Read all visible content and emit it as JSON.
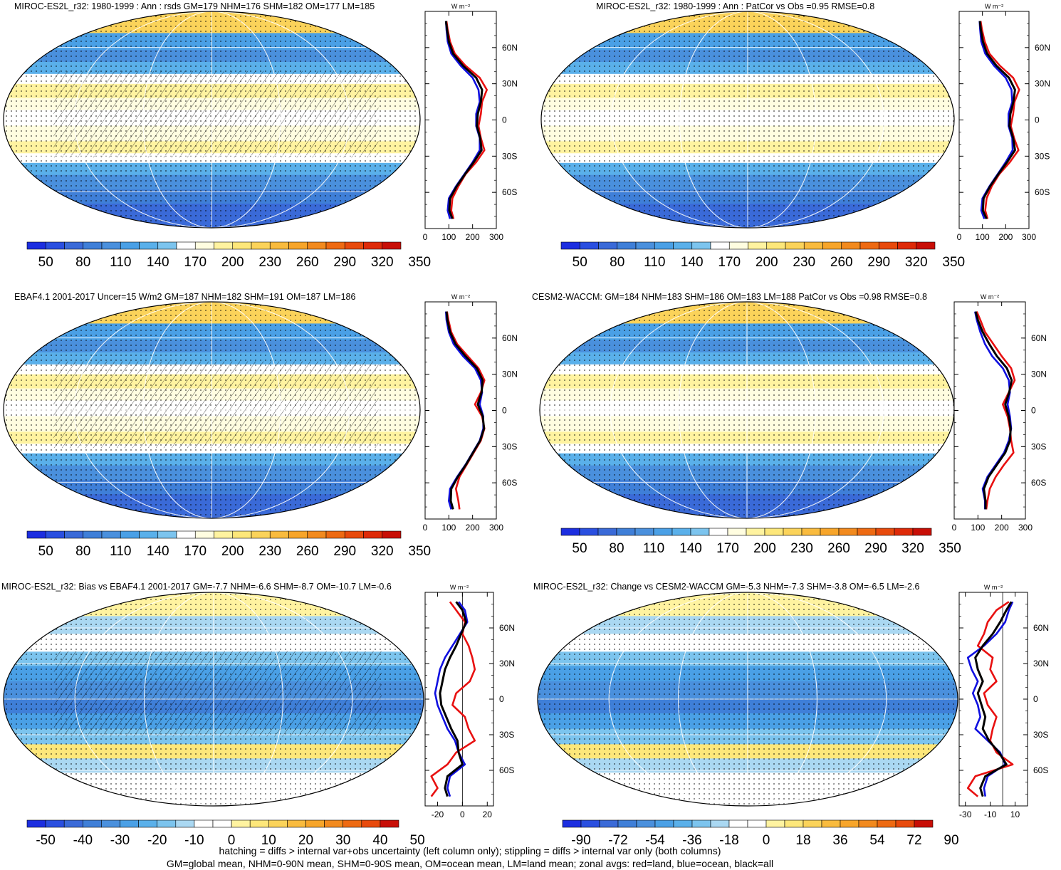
{
  "palette_abs": [
    "#1c2ee0",
    "#2a4fe0",
    "#3a6ad8",
    "#3f7fd8",
    "#4a90dd",
    "#4aa0e6",
    "#5ab0ea",
    "#7cc4ee",
    "#ffffff",
    "#fffde0",
    "#fff3a0",
    "#fde77a",
    "#fbd35a",
    "#f9bb3e",
    "#f7a52a",
    "#f28a1e",
    "#ee6a12",
    "#e84a0c",
    "#de2a08",
    "#c80e06"
  ],
  "palette_diff": [
    "#1c2ee0",
    "#2a4fe0",
    "#3a6ad8",
    "#3f7fd8",
    "#4a90dd",
    "#4aa0e6",
    "#5ab0ea",
    "#7cc4ee",
    "#aad8f2",
    "#ffffff",
    "#ffffff",
    "#fff3a0",
    "#fde77a",
    "#fbd35a",
    "#f9bb3e",
    "#f7a52a",
    "#f28a1e",
    "#ee6a12",
    "#e84a0c",
    "#c80e06"
  ],
  "line_colors": {
    "land": "#e81010",
    "ocean": "#1010e0",
    "all": "#000000"
  },
  "chart_data": [
    {
      "type": "heatmap",
      "title": "MIROC-ES2L_r32: 1980-1999 : Ann : rsds GM=179 NHM=176 SHM=182 OM=177 LM=185",
      "colorbar_labels": [
        "50",
        "80",
        "110",
        "140",
        "170",
        "200",
        "230",
        "260",
        "290",
        "320",
        "350"
      ],
      "zonal_avg": {
        "unit": "W m⁻²",
        "xlim": [
          0,
          300
        ],
        "xticks": [
          "0",
          "100",
          "200",
          "300"
        ],
        "ylim": [
          -90,
          90
        ],
        "yticks": [
          "60N",
          "30N",
          "0",
          "30S",
          "60S"
        ],
        "lat": [
          82,
          75,
          65,
          55,
          45,
          35,
          25,
          15,
          5,
          -5,
          -15,
          -25,
          -35,
          -45,
          -55,
          -65,
          -75,
          -82
        ],
        "series": [
          {
            "key": "land",
            "values": [
              90,
              95,
              105,
              125,
              170,
              230,
              260,
              240,
              235,
              225,
              235,
              250,
              215,
              170,
              140,
              115,
              110,
              120
            ]
          },
          {
            "key": "ocean",
            "values": [
              88,
              90,
              95,
              110,
              150,
              200,
              225,
              230,
              215,
              215,
              230,
              230,
              200,
              165,
              130,
              100,
              95,
              105
            ]
          },
          {
            "key": "all",
            "values": [
              88,
              92,
              100,
              118,
              160,
              215,
              240,
              235,
              222,
              218,
              232,
              238,
              205,
              168,
              133,
              105,
              102,
              115
            ]
          }
        ]
      }
    },
    {
      "type": "heatmap",
      "title": "MIROC-ES2L_r32: 1980-1999 : Ann : PatCor vs Obs =0.95 RMSE=0.8",
      "colorbar_labels": [
        "50",
        "80",
        "110",
        "140",
        "170",
        "200",
        "230",
        "260",
        "290",
        "320",
        "350"
      ],
      "zonal_avg": {
        "unit": "W m⁻²",
        "xlim": [
          0,
          300
        ],
        "xticks": [
          "0",
          "100",
          "200",
          "300"
        ],
        "ylim": [
          -90,
          90
        ],
        "yticks": [
          "60N",
          "30N",
          "0",
          "30S",
          "60S"
        ],
        "lat": [
          82,
          75,
          65,
          55,
          45,
          35,
          25,
          15,
          5,
          -5,
          -15,
          -25,
          -35,
          -45,
          -55,
          -65,
          -75,
          -82
        ],
        "series": [
          {
            "key": "land",
            "values": [
              92,
              98,
              110,
              130,
              175,
              232,
              258,
              238,
              232,
              222,
              236,
              255,
              218,
              172,
              140,
              118,
              112,
              122
            ]
          },
          {
            "key": "ocean",
            "values": [
              88,
              90,
              95,
              112,
              150,
              200,
              225,
              228,
              212,
              212,
              228,
              230,
              200,
              165,
              130,
              100,
              95,
              108
            ]
          },
          {
            "key": "all",
            "values": [
              89,
              93,
              102,
              120,
              160,
              214,
              240,
              233,
              220,
              216,
              232,
              240,
              206,
              168,
              133,
              105,
              102,
              118
            ]
          }
        ]
      }
    },
    {
      "type": "heatmap",
      "title": "EBAF4.1 2001-2017 Uncer=15 W/m2 GM=187 NHM=182 SHM=191 OM=187 LM=186",
      "colorbar_labels": [
        "50",
        "80",
        "110",
        "140",
        "170",
        "200",
        "230",
        "260",
        "290",
        "320",
        "350"
      ],
      "zonal_avg": {
        "unit": "W m⁻²",
        "xlim": [
          0,
          300
        ],
        "xticks": [
          "0",
          "100",
          "200",
          "300"
        ],
        "ylim": [
          -90,
          90
        ],
        "yticks": [
          "60N",
          "30N",
          "0",
          "30S",
          "60S"
        ],
        "lat": [
          82,
          75,
          65,
          55,
          45,
          35,
          25,
          15,
          5,
          -5,
          -15,
          -25,
          -35,
          -45,
          -55,
          -65,
          -75,
          -82
        ],
        "series": [
          {
            "key": "land",
            "values": [
              92,
              98,
              110,
              135,
              180,
              225,
              250,
              235,
              210,
              240,
              250,
              235,
              205,
              175,
              145,
              130,
              140,
              145
            ]
          },
          {
            "key": "ocean",
            "values": [
              88,
              90,
              100,
              120,
              160,
              210,
              235,
              240,
              230,
              245,
              245,
              230,
              200,
              170,
              135,
              105,
              100,
              110
            ]
          },
          {
            "key": "all",
            "values": [
              90,
              94,
              105,
              128,
              170,
              218,
              242,
              238,
              222,
              243,
              248,
              232,
              202,
              172,
              138,
              110,
              108,
              118
            ]
          }
        ]
      }
    },
    {
      "type": "heatmap",
      "title": "CESM2-WACCM: GM=184 NHM=183 SHM=186 OM=183 LM=188 PatCor vs Obs =0.98 RMSE=0.8",
      "colorbar_labels": [
        "50",
        "80",
        "110",
        "140",
        "170",
        "200",
        "230",
        "260",
        "290",
        "320",
        "350"
      ],
      "zonal_avg": {
        "unit": "W m⁻²",
        "xlim": [
          0,
          300
        ],
        "xticks": [
          "0",
          "100",
          "200",
          "300"
        ],
        "ylim": [
          -90,
          90
        ],
        "yticks": [
          "60N",
          "30N",
          "0",
          "30S",
          "60S"
        ],
        "lat": [
          82,
          75,
          65,
          55,
          45,
          35,
          25,
          15,
          5,
          -5,
          -15,
          -25,
          -35,
          -45,
          -55,
          -65,
          -75,
          -82
        ],
        "series": [
          {
            "key": "land",
            "values": [
              95,
              110,
              130,
              165,
              200,
              240,
              255,
              230,
              205,
              225,
              235,
              240,
              250,
              210,
              175,
              150,
              140,
              135
            ]
          },
          {
            "key": "ocean",
            "values": [
              88,
              95,
              110,
              130,
              160,
              205,
              230,
              235,
              225,
              235,
              240,
              230,
              210,
              175,
              140,
              120,
              130,
              130
            ]
          },
          {
            "key": "all",
            "values": [
              90,
              100,
              120,
              148,
              180,
              222,
              242,
              232,
              215,
              230,
              238,
              235,
              215,
              180,
              145,
              125,
              132,
              132
            ]
          }
        ]
      }
    },
    {
      "type": "heatmap",
      "title": "MIROC-ES2L_r32: Bias vs EBAF4.1 2001-2017 GM=-7.7 NHM=-6.6 SHM=-8.7 OM=-10.7 LM=-0.6",
      "colorbar_labels": [
        "-50",
        "-40",
        "-30",
        "-20",
        "-10",
        "0",
        "10",
        "20",
        "30",
        "40",
        "50"
      ],
      "zonal_avg": {
        "unit": "W m⁻²",
        "xlim": [
          -30,
          25
        ],
        "xticks": [
          "-20",
          "0",
          "20"
        ],
        "ylim": [
          -90,
          90
        ],
        "yticks": [
          "60N",
          "30N",
          "0",
          "30S",
          "60S"
        ],
        "lat": [
          82,
          75,
          65,
          55,
          45,
          35,
          25,
          15,
          5,
          -5,
          -15,
          -25,
          -35,
          -45,
          -55,
          -65,
          -75,
          -82
        ],
        "series": [
          {
            "key": "land",
            "values": [
              -10,
              -5,
              2,
              0,
              5,
              8,
              10,
              6,
              -5,
              -8,
              2,
              5,
              10,
              -5,
              -12,
              -25,
              -20,
              -25
            ]
          },
          {
            "key": "ocean",
            "values": [
              -3,
              2,
              4,
              -2,
              -8,
              -14,
              -18,
              -20,
              -22,
              -20,
              -16,
              -12,
              -6,
              -3,
              2,
              -10,
              -12,
              -10
            ]
          },
          {
            "key": "all",
            "values": [
              -5,
              0,
              3,
              -1,
              -5,
              -10,
              -14,
              -16,
              -18,
              -17,
              -13,
              -9,
              -4,
              -3,
              0,
              -12,
              -14,
              -12
            ]
          }
        ]
      }
    },
    {
      "type": "heatmap",
      "title": "MIROC-ES2L_r32: Change vs CESM2-WACCM GM=-5.3 NHM=-7.3 SHM=-3.8 OM=-6.5 LM=-2.6",
      "colorbar_labels": [
        "-90",
        "-72",
        "-54",
        "-36",
        "-18",
        "0",
        "18",
        "36",
        "54",
        "72",
        "90"
      ],
      "zonal_avg": {
        "unit": "W m⁻²",
        "xlim": [
          -35,
          20
        ],
        "xticks": [
          "-30",
          "-10",
          "10"
        ],
        "ylim": [
          -90,
          90
        ],
        "yticks": [
          "60N",
          "30N",
          "0",
          "30S",
          "60S"
        ],
        "lat": [
          82,
          75,
          65,
          55,
          45,
          35,
          25,
          15,
          5,
          -5,
          -15,
          -25,
          -35,
          -45,
          -55,
          -65,
          -75,
          -82
        ],
        "series": [
          {
            "key": "land",
            "values": [
              5,
              -5,
              -12,
              -15,
              -20,
              -8,
              -10,
              -5,
              -15,
              -12,
              -5,
              -8,
              -10,
              -5,
              8,
              -22,
              -28,
              -20
            ]
          },
          {
            "key": "ocean",
            "values": [
              8,
              5,
              2,
              -5,
              -15,
              -28,
              -25,
              -20,
              -24,
              -20,
              -18,
              -22,
              -12,
              -2,
              2,
              -12,
              -15,
              -14
            ]
          },
          {
            "key": "all",
            "values": [
              7,
              3,
              -2,
              -8,
              -16,
              -22,
              -20,
              -16,
              -20,
              -17,
              -14,
              -16,
              -11,
              -3,
              3,
              -14,
              -18,
              -16
            ]
          }
        ]
      }
    }
  ],
  "footnote": {
    "line1": "hatching = diffs > internal var+obs uncertainty (left column only); stippling = diffs > internal var only (both columns)",
    "line2": "GM=global mean, NHM=0-90N mean, SHM=0-90S mean, OM=ocean mean, LM=land mean; zonal avgs: red=land, blue=ocean, black=all"
  }
}
